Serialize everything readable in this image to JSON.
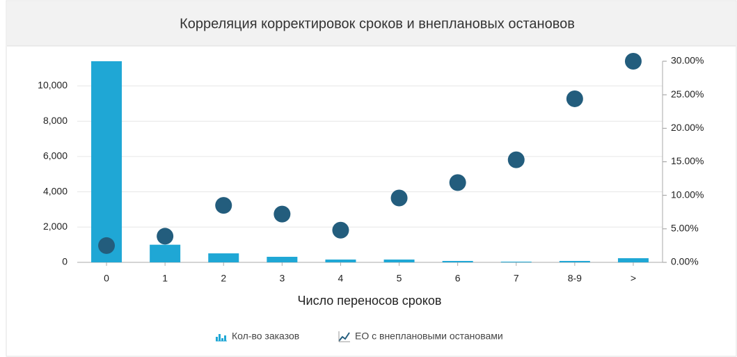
{
  "chart_data": {
    "type": "bar",
    "title": "Корреляция корректировок сроков и внеплановых остановов",
    "x_label": "Число переносов сроков",
    "categories": [
      "0",
      "1",
      "2",
      "3",
      "4",
      "5",
      "6",
      "7",
      "8-9",
      ">"
    ],
    "series": [
      {
        "name": "Кол-во заказов",
        "type": "bar",
        "color": "#1fa7d5",
        "values": [
          11400,
          1000,
          510,
          315,
          160,
          160,
          80,
          40,
          80,
          235
        ]
      },
      {
        "name": "ЕО с внеплановыми остановами",
        "type": "scatter",
        "axis": "y2",
        "color": "#235d7d",
        "values": [
          2.5,
          3.9,
          8.5,
          7.2,
          4.8,
          9.6,
          11.9,
          15.3,
          24.4,
          30
        ]
      }
    ],
    "ylim": [
      0,
      11400
    ],
    "yticks": [
      0,
      {
        "value": 2000,
        "label": "2,000"
      },
      {
        "value": 4000,
        "label": "4,000"
      },
      {
        "value": 6000,
        "label": "6,000"
      },
      {
        "value": 8000,
        "label": "8,000"
      },
      {
        "value": 10000,
        "label": "10,000"
      }
    ],
    "y2lim": [
      0,
      30
    ],
    "y2ticks": [
      {
        "value": 0,
        "label": "0.00%"
      },
      {
        "value": 5,
        "label": "5.00%"
      },
      {
        "value": 10,
        "label": "10.00%"
      },
      {
        "value": 15,
        "label": "15.00%"
      },
      {
        "value": 20,
        "label": "20.00%"
      },
      {
        "value": 25,
        "label": "25.00%"
      },
      {
        "value": 30,
        "label": "30.00%"
      }
    ],
    "grid": true,
    "legend": "bottom"
  }
}
